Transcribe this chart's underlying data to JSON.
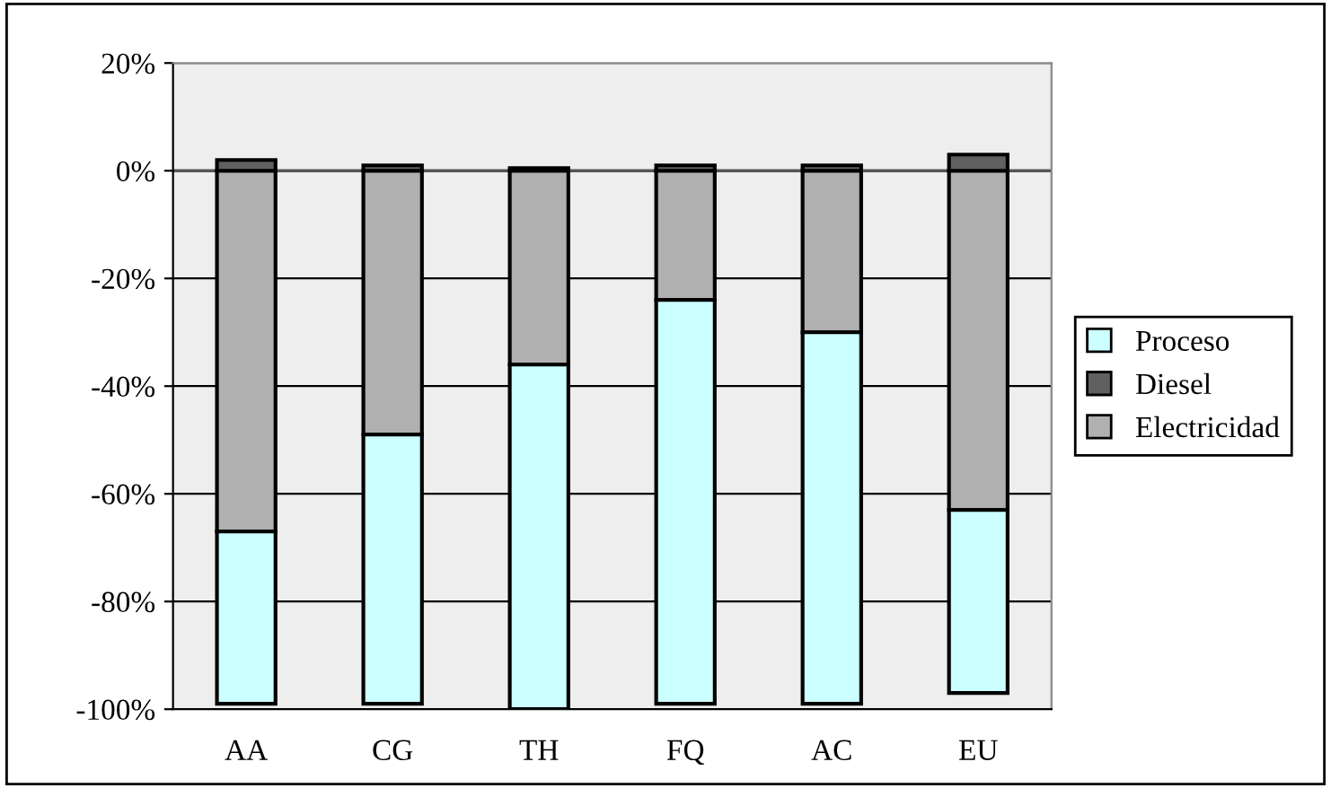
{
  "chart_data": {
    "type": "bar",
    "stacked": true,
    "categories": [
      "AA",
      "CG",
      "TH",
      "FQ",
      "AC",
      "EU"
    ],
    "series": [
      {
        "name": "Electricidad",
        "color": "#b0b0b0",
        "values": [
          -67,
          -49,
          -36,
          -24,
          -30,
          -63
        ]
      },
      {
        "name": "Diesel",
        "color": "#606060",
        "values": [
          2,
          1,
          0.5,
          1,
          1,
          3
        ]
      },
      {
        "name": "Proceso",
        "color": "#ccffff",
        "values": [
          -32,
          -50,
          -64,
          -75,
          -69,
          -34
        ]
      }
    ],
    "ylim": [
      -100,
      20
    ],
    "yticks": [
      {
        "value": -100,
        "label": "-100%"
      },
      {
        "value": -80,
        "label": "-80%"
      },
      {
        "value": -60,
        "label": "-60%"
      },
      {
        "value": -40,
        "label": "-40%"
      },
      {
        "value": -20,
        "label": "-20%"
      },
      {
        "value": 0,
        "label": "0%"
      },
      {
        "value": 20,
        "label": "20%"
      }
    ],
    "grid": "y",
    "legend": "right"
  }
}
